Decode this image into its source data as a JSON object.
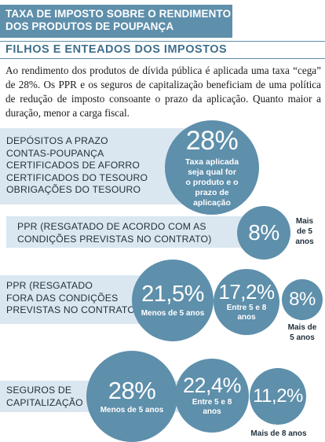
{
  "header": {
    "title_line1": "Taxa de imposto sobre o rendimento",
    "title_line2": "dos produtos de poupança"
  },
  "subtitle": "Filhos e enteados dos impostos",
  "intro": "Ao rendimento dos produtos de dívida pública é aplicada uma taxa “cega” de 28%. Os PPR e os seguros de capitalização beneficiam de uma política de redução de imposto consoante o prazo da aplicação. Quanto maior a duração, menor a carga fiscal.",
  "rows": [
    {
      "labels": [
        "Depósitos a prazo",
        "Contas-poupança",
        "Certificados de aforro",
        "Certificados do Tesouro",
        "Obrigações do Tesouro"
      ],
      "rates": [
        {
          "value": "28%",
          "caption": [
            "Taxa aplicada",
            "seja qual for",
            "o produto e o",
            "prazo de",
            "aplicação"
          ]
        }
      ]
    },
    {
      "labels": [
        "PPR (resgatado de acordo com as",
        "condições previstas no contrato)"
      ],
      "rates": [
        {
          "value": "8%",
          "caption": [
            "Mais",
            "de 5",
            "anos"
          ]
        }
      ]
    },
    {
      "labels": [
        "PPR (resgatado",
        "fora das condições",
        "previstas no contrato)"
      ],
      "rates": [
        {
          "value": "21,5%",
          "caption": [
            "Menos de 5 anos"
          ]
        },
        {
          "value": "17,2%",
          "caption": [
            "Entre 5 e 8",
            "anos"
          ]
        },
        {
          "value": "8%",
          "caption": [
            "Mais de",
            "5 anos"
          ]
        }
      ]
    },
    {
      "labels": [
        "Seguros de",
        "capitalização"
      ],
      "rates": [
        {
          "value": "28%",
          "caption": [
            "Menos de 5 anos"
          ]
        },
        {
          "value": "22,4%",
          "caption": [
            "Entre 5 e 8",
            "anos"
          ]
        },
        {
          "value": "11,2%",
          "caption": [
            "Mais de 8 anos"
          ]
        }
      ]
    }
  ],
  "colors": {
    "accent": "#5e8fab",
    "band": "#dbe7f0",
    "text": "#1f2f3a"
  }
}
